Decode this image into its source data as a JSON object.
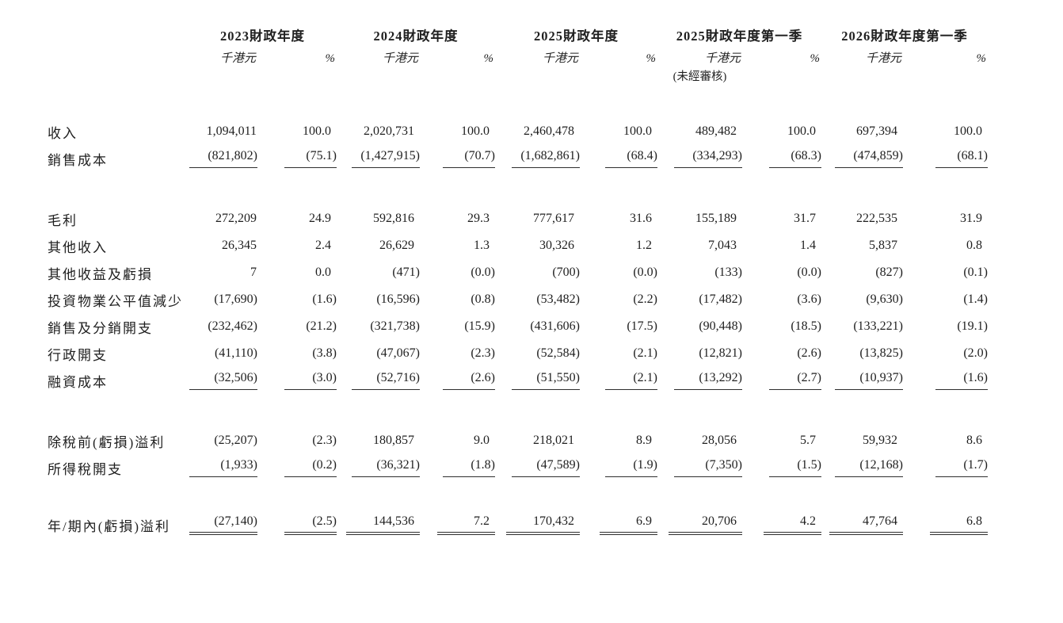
{
  "colors": {
    "background": "#ffffff",
    "text": "#1f1f1f",
    "rule": "#2e2e2e"
  },
  "table": {
    "column_groups": [
      {
        "title": "2023財政年度",
        "unit": "千港元",
        "pct": "%",
        "note": ""
      },
      {
        "title": "2024財政年度",
        "unit": "千港元",
        "pct": "%",
        "note": ""
      },
      {
        "title": "2025財政年度",
        "unit": "千港元",
        "pct": "%",
        "note": ""
      },
      {
        "title": "2025財政年度第一季",
        "unit": "千港元",
        "pct": "%",
        "note": "(未經審核)"
      },
      {
        "title": "2026財政年度第一季",
        "unit": "千港元",
        "pct": "%",
        "note": ""
      }
    ],
    "rows": [
      {
        "label": "收入",
        "values": [
          "1,094,011",
          "100.0",
          "2,020,731",
          "100.0",
          "2,460,478",
          "100.0",
          "489,482",
          "100.0",
          "697,394",
          "100.0"
        ]
      },
      {
        "label": "銷售成本",
        "values": [
          "(821,802)",
          "(75.1)",
          "(1,427,915)",
          "(70.7)",
          "(1,682,861)",
          "(68.4)",
          "(334,293)",
          "(68.3)",
          "(474,859)",
          "(68.1)"
        ]
      },
      {
        "label": "毛利",
        "values": [
          "272,209",
          "24.9",
          "592,816",
          "29.3",
          "777,617",
          "31.6",
          "155,189",
          "31.7",
          "222,535",
          "31.9"
        ]
      },
      {
        "label": "其他收入",
        "values": [
          "26,345",
          "2.4",
          "26,629",
          "1.3",
          "30,326",
          "1.2",
          "7,043",
          "1.4",
          "5,837",
          "0.8"
        ]
      },
      {
        "label": "其他收益及虧損",
        "values": [
          "7",
          "0.0",
          "(471)",
          "(0.0)",
          "(700)",
          "(0.0)",
          "(133)",
          "(0.0)",
          "(827)",
          "(0.1)"
        ]
      },
      {
        "label": "投資物業公平值減少",
        "values": [
          "(17,690)",
          "(1.6)",
          "(16,596)",
          "(0.8)",
          "(53,482)",
          "(2.2)",
          "(17,482)",
          "(3.6)",
          "(9,630)",
          "(1.4)"
        ]
      },
      {
        "label": "銷售及分銷開支",
        "values": [
          "(232,462)",
          "(21.2)",
          "(321,738)",
          "(15.9)",
          "(431,606)",
          "(17.5)",
          "(90,448)",
          "(18.5)",
          "(133,221)",
          "(19.1)"
        ]
      },
      {
        "label": "行政開支",
        "values": [
          "(41,110)",
          "(3.8)",
          "(47,067)",
          "(2.3)",
          "(52,584)",
          "(2.1)",
          "(12,821)",
          "(2.6)",
          "(13,825)",
          "(2.0)"
        ]
      },
      {
        "label": "融資成本",
        "values": [
          "(32,506)",
          "(3.0)",
          "(52,716)",
          "(2.6)",
          "(51,550)",
          "(2.1)",
          "(13,292)",
          "(2.7)",
          "(10,937)",
          "(1.6)"
        ]
      },
      {
        "label": "除稅前(虧損)溢利",
        "values": [
          "(25,207)",
          "(2.3)",
          "180,857",
          "9.0",
          "218,021",
          "8.9",
          "28,056",
          "5.7",
          "59,932",
          "8.6"
        ]
      },
      {
        "label": "所得稅開支",
        "values": [
          "(1,933)",
          "(0.2)",
          "(36,321)",
          "(1.8)",
          "(47,589)",
          "(1.9)",
          "(7,350)",
          "(1.5)",
          "(12,168)",
          "(1.7)"
        ]
      },
      {
        "label": "年/期內(虧損)溢利",
        "values": [
          "(27,140)",
          "(2.5)",
          "144,536",
          "7.2",
          "170,432",
          "6.9",
          "20,706",
          "4.2",
          "47,764",
          "6.8"
        ]
      }
    ]
  }
}
